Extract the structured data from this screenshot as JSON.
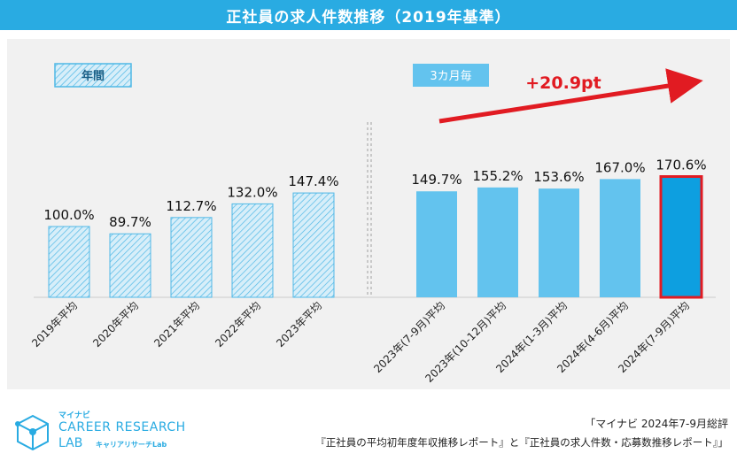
{
  "header": {
    "title": "正社員の求人件数推移（2019年基準）"
  },
  "legend": {
    "annual": "年間",
    "quarterly": "3カ月毎"
  },
  "annotation": {
    "delta": "+20.9pt"
  },
  "colors": {
    "title_bg": "#29abe2",
    "hatch_fill": "#d7eef9",
    "hatch_line": "#4fb8e6",
    "bar_solid": "#63c3ee",
    "bar_highlight": "#0d9fe0",
    "highlight_border": "#e11b22",
    "arrow": "#e11b22",
    "plot_bg": "#f1f1f1"
  },
  "chart_data": {
    "type": "bar",
    "title": "正社員の求人件数推移（2019年基準）",
    "ylabel": "",
    "xlabel": "",
    "ylim": [
      0,
      200
    ],
    "groups": [
      {
        "name": "年間",
        "style": "hatched",
        "categories": [
          "2019年平均",
          "2020年平均",
          "2021年平均",
          "2022年平均",
          "2023年平均"
        ],
        "values": [
          100.0,
          89.7,
          112.7,
          132.0,
          147.4
        ],
        "labels": [
          "100.0%",
          "89.7%",
          "112.7%",
          "132.0%",
          "147.4%"
        ]
      },
      {
        "name": "3カ月毎",
        "style": "solid",
        "categories": [
          "2023年(7-9月)平均",
          "2023年(10-12月)平均",
          "2024年(1-3月)平均",
          "2024年(4-6月)平均",
          "2024年(7-9月)平均"
        ],
        "values": [
          149.7,
          155.2,
          153.6,
          167.0,
          170.6
        ],
        "labels": [
          "149.7%",
          "155.2%",
          "153.6%",
          "167.0%",
          "170.6%"
        ],
        "highlight_index": 4
      }
    ]
  },
  "footer": {
    "source_line1": "「マイナビ 2024年7-9月総評",
    "source_line2": "『正社員の平均初年度年収推移レポート』と『正社員の求人件数・応募数推移レポート』」"
  },
  "logo": {
    "brand": "マイナビ",
    "name_line1": "CAREER RESEARCH",
    "name_line2": "LAB",
    "subtitle": "キャリアリサーチLab"
  }
}
